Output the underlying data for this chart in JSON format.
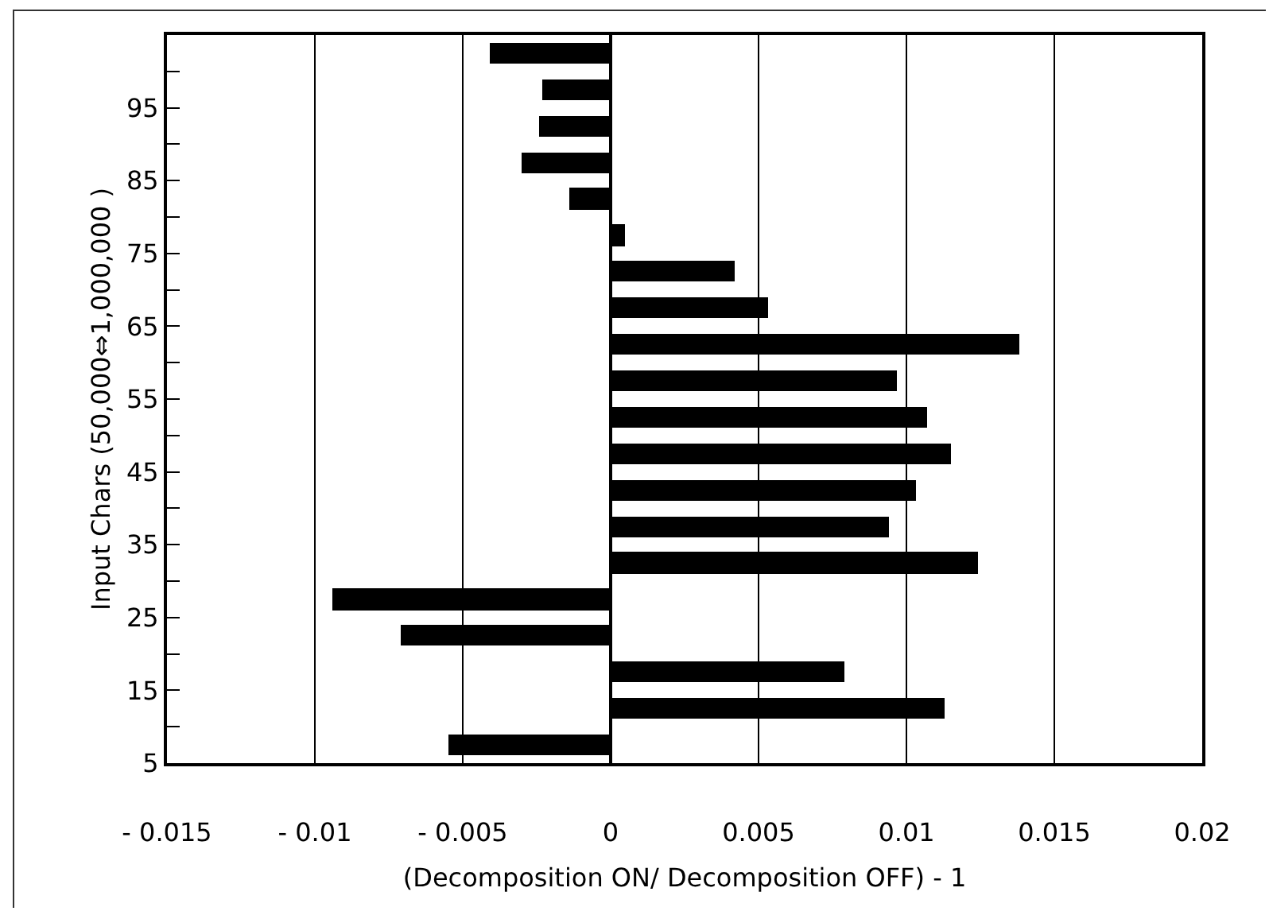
{
  "chart_data": {
    "type": "bar",
    "orientation": "horizontal",
    "xlabel": "(Decomposition ON/ Decomposition OFF) - 1",
    "ylabel": "Input Chars (50,000⇔1,000,000 )",
    "x": [
      7.5,
      12.5,
      17.5,
      22.5,
      27.5,
      32.5,
      37.5,
      42.5,
      47.5,
      52.5,
      57.5,
      62.5,
      67.5,
      72.5,
      77.5,
      82.5,
      87.5,
      92.5,
      97.5,
      102.5
    ],
    "values": [
      -0.0055,
      0.0113,
      0.0079,
      -0.0071,
      -0.0094,
      0.0124,
      0.0094,
      0.0103,
      0.0115,
      0.0107,
      0.0097,
      0.0138,
      0.0053,
      0.0042,
      0.0005,
      -0.0014,
      -0.003,
      -0.0024,
      -0.0023,
      -0.0041
    ],
    "color": "#000000",
    "xlim": [
      -0.015,
      0.02
    ],
    "xticks": [
      -0.015,
      -0.01,
      -0.005,
      0,
      0.005,
      0.01,
      0.015,
      0.02
    ],
    "ylim": [
      5,
      105
    ],
    "yticks": [
      5,
      {
        "value": 10,
        "label": null
      },
      15,
      {
        "value": 20,
        "label": null
      },
      25,
      {
        "value": 30,
        "label": null
      },
      35,
      {
        "value": 40,
        "label": null
      },
      45,
      {
        "value": 50,
        "label": null
      },
      55,
      {
        "value": 60,
        "label": null
      },
      65,
      {
        "value": 70,
        "label": null
      },
      75,
      {
        "value": 80,
        "label": null
      },
      85,
      {
        "value": 90,
        "label": null
      },
      95,
      {
        "value": 100,
        "label": null
      }
    ],
    "grid": "x"
  }
}
